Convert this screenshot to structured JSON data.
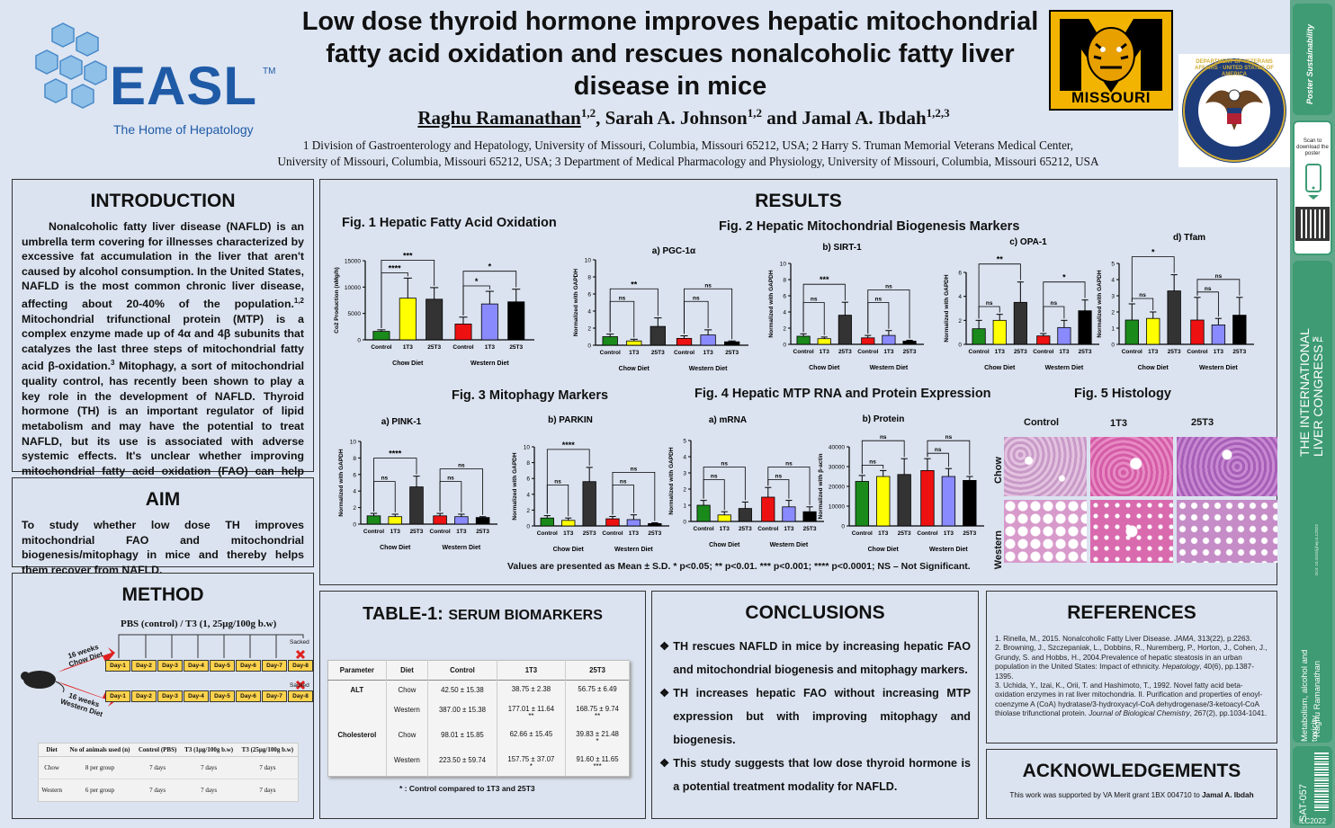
{
  "header": {
    "easl_name": "EASL",
    "easl_tm": "TM",
    "easl_tagline": "The Home of Hepatology",
    "title": "Low dose thyroid hormone improves hepatic mitochondrial fatty acid oxidation and rescues nonalcoholic fatty liver disease in mice",
    "author1": "Raghu Ramanathan",
    "author1_sup": "1,2",
    "author2": ", Sarah A. Johnson",
    "author2_sup": "1,2",
    "author3": " and Jamal A. Ibdah",
    "author3_sup": "1,2,3",
    "affiliation_line1": "1 Division of Gastroenterology and Hepatology, University of Missouri, Columbia, Missouri 65212, USA; 2 Harry S. Truman Memorial Veterans Medical Center,",
    "affiliation_line2": "University of Missouri, Columbia, Missouri 65212, USA; 3 Department of Medical Pharmacology and Physiology, University of Missouri, Columbia, Missouri 65212, USA",
    "missouri_logo_text": "MISSOURI",
    "va_seal_text": "DEPARTMENT OF VETERANS AFFAIRS · UNITED STATES OF AMERICA"
  },
  "introduction": {
    "heading": "INTRODUCTION",
    "text": "Nonalcoholic fatty liver disease (NAFLD) is an umbrella term covering for illnesses characterized by excessive fat accumulation in the liver that aren't caused by alcohol consumption. In the United States, NAFLD is the most common chronic liver disease, affecting about 20-40% of the population.",
    "text_sup1": "1,2",
    "text2": " Mitochondrial trifunctional protein (MTP) is a complex enzyme made up of 4α and 4β subunits that catalyzes the last three steps of mitochondrial fatty acid β-oxidation.",
    "text_sup2": "3",
    "text3": " Mitophagy, a sort of mitochondrial quality control, has recently been shown to play a key role in the development of NAFLD. Thyroid hormone (TH) is an important regulator of lipid metabolism and may have the potential to treat NAFLD, but its use is associated with adverse systemic effects. It's unclear whether improving mitochondrial fatty acid oxidation (FAO) can help people with NAFLD."
  },
  "aim": {
    "heading": "AIM",
    "text": "To study whether low dose TH improves mitochondrial FAO and mitochondrial biogenesis/mitophagy in mice and thereby helps them recover from NAFLD."
  },
  "method": {
    "heading": "METHOD",
    "protocol": "PBS (control) / T3 (1, 25μg/100g b.w)",
    "chow_label": "16 weeks Chow Diet",
    "western_label": "16 weeks Western Diet",
    "sacked": "Sacked",
    "days": [
      "Day-1",
      "Day-2",
      "Day-3",
      "Day-4",
      "Day-5",
      "Day-6",
      "Day-7",
      "Day-8"
    ],
    "table_headers": [
      "Diet",
      "No of animals used (n)",
      "Control (PBS)",
      "T3 (1μg/100g b.w)",
      "T3 (25μg/100g b.w)"
    ],
    "table_rows": [
      [
        "Chow",
        "8 per group",
        "7 days",
        "7 days",
        "7 days"
      ],
      [
        "Western",
        "6 per group",
        "7 days",
        "7 days",
        "7 days"
      ]
    ]
  },
  "results": {
    "heading": "RESULTS",
    "fig1_title": "Fig. 1 Hepatic Fatty Acid Oxidation",
    "fig2_title": "Fig. 2 Hepatic Mitochondrial Biogenesis Markers",
    "fig3_title": "Fig. 3 Mitophagy Markers",
    "fig4_title": "Fig. 4 Hepatic MTP  RNA and Protein Expression",
    "fig5_title": "Fig. 5 Histology",
    "histology_cols": [
      "Control",
      "1T3",
      "25T3"
    ],
    "histology_rows": [
      "Chow",
      "Western"
    ],
    "chow_diet": "Chow Diet",
    "western_diet": "Western Diet",
    "note": "Values are presented as Mean ± S.D. * p<0.05; ** p<0.01. *** p<0.001; **** p<0.0001; NS – Not Significant."
  },
  "chart_data": [
    {
      "id": "fig1",
      "type": "bar",
      "panel": "",
      "ylabel": "Co2 Production (nMg/h)",
      "ylim": [
        0,
        15000
      ],
      "yticks": [
        0,
        5000,
        10000,
        15000
      ],
      "categories": [
        "Control",
        "1T3",
        "25T3",
        "Control",
        "1T3",
        "25T3"
      ],
      "values": [
        1600,
        7900,
        7700,
        3000,
        6800,
        7200
      ],
      "errors": [
        300,
        3800,
        2200,
        1300,
        2400,
        2400
      ],
      "colors": [
        "#1a8a1a",
        "#ffff00",
        "#333333",
        "#ee1111",
        "#8a8aff",
        "#000000"
      ],
      "sig": [
        {
          "a": 0,
          "b": 1,
          "label": "****",
          "level": 0
        },
        {
          "a": 0,
          "b": 2,
          "label": "***",
          "level": 1
        },
        {
          "a": 3,
          "b": 4,
          "label": "*",
          "level": 0
        },
        {
          "a": 3,
          "b": 5,
          "label": "*",
          "level": 1
        }
      ]
    },
    {
      "id": "pgc",
      "type": "bar",
      "panel": "a) PGC-1α",
      "ylabel": "Normalized with GAPDH",
      "ylim": [
        0,
        10
      ],
      "yticks": [
        0,
        2,
        4,
        6,
        8,
        10
      ],
      "categories": [
        "Control",
        "1T3",
        "25T3",
        "Control",
        "1T3",
        "25T3"
      ],
      "values": [
        1.0,
        0.5,
        2.2,
        0.8,
        1.2,
        0.4
      ],
      "errors": [
        0.3,
        0.2,
        1.0,
        0.3,
        0.6,
        0.1
      ],
      "colors": [
        "#1a8a1a",
        "#ffff00",
        "#333333",
        "#ee1111",
        "#8a8aff",
        "#000000"
      ],
      "sig": [
        {
          "a": 0,
          "b": 1,
          "label": "ns",
          "level": 0
        },
        {
          "a": 0,
          "b": 2,
          "label": "**",
          "level": 1
        },
        {
          "a": 3,
          "b": 4,
          "label": "ns",
          "level": 0
        },
        {
          "a": 3,
          "b": 5,
          "label": "ns",
          "level": 1
        }
      ]
    },
    {
      "id": "sirt",
      "type": "bar",
      "panel": "b) SIRT-1",
      "ylabel": "Normalized with GAPDH",
      "ylim": [
        0,
        10
      ],
      "yticks": [
        0,
        2,
        4,
        6,
        8,
        10
      ],
      "categories": [
        "Control",
        "1T3",
        "25T3",
        "Control",
        "1T3",
        "25T3"
      ],
      "values": [
        1.0,
        0.7,
        3.6,
        0.8,
        1.1,
        0.4
      ],
      "errors": [
        0.3,
        0.2,
        1.6,
        0.3,
        0.6,
        0.1
      ],
      "colors": [
        "#1a8a1a",
        "#ffff00",
        "#333333",
        "#ee1111",
        "#8a8aff",
        "#000000"
      ],
      "sig": [
        {
          "a": 0,
          "b": 1,
          "label": "ns",
          "level": 0
        },
        {
          "a": 0,
          "b": 2,
          "label": "***",
          "level": 1
        },
        {
          "a": 3,
          "b": 4,
          "label": "ns",
          "level": 0
        },
        {
          "a": 3,
          "b": 5,
          "label": "ns",
          "level": 1
        }
      ]
    },
    {
      "id": "opa",
      "type": "bar",
      "panel": "c) OPA-1",
      "ylabel": "Normalized with GAPDH",
      "ylim": [
        0,
        6
      ],
      "yticks": [
        0,
        2,
        4,
        6
      ],
      "categories": [
        "Control",
        "1T3",
        "25T3",
        "Control",
        "1T3",
        "25T3"
      ],
      "values": [
        1.3,
        2.0,
        3.5,
        0.7,
        1.4,
        2.8
      ],
      "errors": [
        0.7,
        0.5,
        1.7,
        0.2,
        0.6,
        0.9
      ],
      "colors": [
        "#1a8a1a",
        "#ffff00",
        "#333333",
        "#ee1111",
        "#8a8aff",
        "#000000"
      ],
      "sig": [
        {
          "a": 0,
          "b": 1,
          "label": "ns",
          "level": 0
        },
        {
          "a": 0,
          "b": 2,
          "label": "**",
          "level": 1
        },
        {
          "a": 3,
          "b": 4,
          "label": "ns",
          "level": 0
        },
        {
          "a": 3,
          "b": 5,
          "label": "*",
          "level": 1
        }
      ]
    },
    {
      "id": "tfam",
      "type": "bar",
      "panel": "d) Tfam",
      "ylabel": "Normalized with GAPDH",
      "ylim": [
        0,
        5
      ],
      "yticks": [
        0,
        1,
        2,
        3,
        4,
        5
      ],
      "categories": [
        "Control",
        "1T3",
        "25T3",
        "Control",
        "1T3",
        "25T3"
      ],
      "values": [
        1.5,
        1.6,
        3.3,
        1.5,
        1.2,
        1.8
      ],
      "errors": [
        1.0,
        0.4,
        1.0,
        1.4,
        0.4,
        1.1
      ],
      "colors": [
        "#1a8a1a",
        "#ffff00",
        "#333333",
        "#ee1111",
        "#8a8aff",
        "#000000"
      ],
      "sig": [
        {
          "a": 0,
          "b": 1,
          "label": "ns",
          "level": 0
        },
        {
          "a": 0,
          "b": 2,
          "label": "*",
          "level": 1
        },
        {
          "a": 3,
          "b": 4,
          "label": "ns",
          "level": 0
        },
        {
          "a": 3,
          "b": 5,
          "label": "ns",
          "level": 1
        }
      ]
    },
    {
      "id": "pink",
      "type": "bar",
      "panel": "a) PINK-1",
      "ylabel": "Normalized with GAPDH",
      "ylim": [
        0,
        10
      ],
      "yticks": [
        0,
        2,
        4,
        6,
        8,
        10
      ],
      "categories": [
        "Control",
        "1T3",
        "25T3",
        "Control",
        "1T3",
        "25T3"
      ],
      "values": [
        1.0,
        0.9,
        4.5,
        1.0,
        0.9,
        0.8
      ],
      "errors": [
        0.3,
        0.3,
        1.3,
        0.3,
        0.3,
        0.1
      ],
      "colors": [
        "#1a8a1a",
        "#ffff00",
        "#333333",
        "#ee1111",
        "#8a8aff",
        "#000000"
      ],
      "sig": [
        {
          "a": 0,
          "b": 1,
          "label": "ns",
          "level": 0
        },
        {
          "a": 0,
          "b": 2,
          "label": "****",
          "level": 1
        },
        {
          "a": 3,
          "b": 4,
          "label": "ns",
          "level": 0
        },
        {
          "a": 3,
          "b": 5,
          "label": "ns",
          "level": 1
        }
      ]
    },
    {
      "id": "parkin",
      "type": "bar",
      "panel": "b) PARKIN",
      "ylabel": "Normalized with GAPDH",
      "ylim": [
        0,
        10
      ],
      "yticks": [
        0,
        2,
        4,
        6,
        8,
        10
      ],
      "categories": [
        "Control",
        "1T3",
        "25T3",
        "Control",
        "1T3",
        "25T3"
      ],
      "values": [
        1.0,
        0.7,
        5.6,
        0.9,
        0.8,
        0.3
      ],
      "errors": [
        0.3,
        0.3,
        1.8,
        0.3,
        0.6,
        0.1
      ],
      "colors": [
        "#1a8a1a",
        "#ffff00",
        "#333333",
        "#ee1111",
        "#8a8aff",
        "#000000"
      ],
      "sig": [
        {
          "a": 0,
          "b": 1,
          "label": "ns",
          "level": 0
        },
        {
          "a": 0,
          "b": 2,
          "label": "****",
          "level": 1
        },
        {
          "a": 3,
          "b": 4,
          "label": "ns",
          "level": 0
        },
        {
          "a": 3,
          "b": 5,
          "label": "ns",
          "level": 1
        }
      ]
    },
    {
      "id": "mrna",
      "type": "bar",
      "panel": "a) mRNA",
      "ylabel": "Normalized with GAPDH",
      "ylim": [
        0,
        5
      ],
      "yticks": [
        0,
        1,
        2,
        3,
        4,
        5
      ],
      "categories": [
        "Control",
        "1T3",
        "25T3",
        "Control",
        "1T3",
        "25T3"
      ],
      "values": [
        1.0,
        0.4,
        0.8,
        1.5,
        0.9,
        0.6
      ],
      "errors": [
        0.3,
        0.2,
        0.4,
        0.6,
        0.4,
        0.3
      ],
      "colors": [
        "#1a8a1a",
        "#ffff00",
        "#333333",
        "#ee1111",
        "#8a8aff",
        "#000000"
      ],
      "sig": [
        {
          "a": 0,
          "b": 1,
          "label": "ns",
          "level": 0
        },
        {
          "a": 0,
          "b": 2,
          "label": "ns",
          "level": 1
        },
        {
          "a": 3,
          "b": 4,
          "label": "ns",
          "level": 0
        },
        {
          "a": 3,
          "b": 5,
          "label": "ns",
          "level": 1
        }
      ]
    },
    {
      "id": "protein",
      "type": "bar",
      "panel": "b) Protein",
      "ylabel": "Normalized with β-actin",
      "ylim": [
        0,
        40000
      ],
      "yticks": [
        0,
        10000,
        20000,
        30000,
        40000
      ],
      "categories": [
        "Control",
        "1T3",
        "25T3",
        "Control",
        "1T3",
        "25T3"
      ],
      "values": [
        22500,
        25000,
        26000,
        28000,
        25000,
        23000
      ],
      "errors": [
        3000,
        3000,
        8000,
        6000,
        4000,
        2000
      ],
      "colors": [
        "#1a8a1a",
        "#ffff00",
        "#333333",
        "#ee1111",
        "#8a8aff",
        "#000000"
      ],
      "sig": [
        {
          "a": 0,
          "b": 1,
          "label": "ns",
          "level": 0
        },
        {
          "a": 0,
          "b": 2,
          "label": "ns",
          "level": 1
        },
        {
          "a": 3,
          "b": 4,
          "label": "ns",
          "level": 0
        },
        {
          "a": 3,
          "b": 5,
          "label": "ns",
          "level": 1
        }
      ]
    }
  ],
  "table1": {
    "heading_bold": "TABLE-1: ",
    "heading_rest": "SERUM BIOMARKERS",
    "headers": [
      "Parameter",
      "Diet",
      "Control",
      "1T3",
      "25T3"
    ],
    "rows": [
      {
        "param": "ALT",
        "diet": "Chow",
        "control": "42.50 ± 15.38",
        "t1": "38.75 ± 2.38",
        "t1_sig": "",
        "t25": "56.75 ± 6.49",
        "t25_sig": ""
      },
      {
        "param": "",
        "diet": "Western",
        "control": "387.00 ± 15.38",
        "t1": "177.01 ± 11.64",
        "t1_sig": "**",
        "t25": "168.75 ± 9.74",
        "t25_sig": "**"
      },
      {
        "param": "Cholesterol",
        "diet": "Chow",
        "control": "98.01 ± 15.85",
        "t1": "62.66 ± 15.45",
        "t1_sig": "",
        "t25": "39.83 ± 21.48",
        "t25_sig": "*"
      },
      {
        "param": "",
        "diet": "Western",
        "control": "223.50 ± 59.74",
        "t1": "157.75 ± 37.07",
        "t1_sig": "*",
        "t25": "91.60 ± 11.65",
        "t25_sig": "***"
      }
    ],
    "footnote": "* : Control compared to 1T3 and 25T3"
  },
  "conclusions": {
    "heading": "CONCLUSIONS",
    "items": [
      "TH rescues NAFLD in mice by increasing hepatic FAO and mitochondrial biogenesis and mitophagy markers.",
      "TH increases hepatic FAO without increasing MTP expression but with improving mitophagy and biogenesis.",
      "This study suggests that low dose thyroid hormone is a potential treatment modality for NAFLD."
    ]
  },
  "references": {
    "heading": "REFERENCES",
    "r1a": "1. Rinella, M., 2015. Nonalcoholic Fatty Liver Disease. ",
    "r1j": "JAMA",
    "r1b": ", 313(22), p.2263.",
    "r2a": "2. Browning, J., Szczepaniak, L., Dobbins, R., Nuremberg, P., Horton, J., Cohen, J., Grundy, S. and Hobbs, H., 2004.Prevalence of hepatic steatosis in an urban population in the United States: Impact of ethnicity. ",
    "r2j": "Hepatology",
    "r2b": ", 40(6), pp.1387-1395.",
    "r3a": "3. Uchida, Y., Izai, K., Orii, T. and Hashimoto, T., 1992. Novel fatty acid beta-oxidation enzymes in rat liver mitochondria. II. Purification and properties of enoyl-coenzyme A (CoA) hydratase/3-hydroxyacyl-CoA dehydrogenase/3-ketoacyl-CoA thiolase trifunctional protein. ",
    "r3j": "Journal of Biological Chemistry",
    "r3b": ", 267(2), pp.1034-1041."
  },
  "acknowledgements": {
    "heading": "ACKNOWLEDGEMENTS",
    "text": "This work was supported by VA Merit grant 1BX 004710 to ",
    "name": "Jamal A. Ibdah"
  },
  "sidebar": {
    "poster_logo": "Poster Sustainability",
    "scan_text": "Scan to download the poster",
    "congress": "THE INTERNATIONAL LIVER CONGRESS™",
    "doi": "DOI: 10.1016/j.jhep.ILC2022",
    "category": "Metabolism, alcohol and toxicity",
    "author": "Raghu Ramanathan",
    "poster_id": "SAT-057",
    "event": "ILC2022"
  }
}
